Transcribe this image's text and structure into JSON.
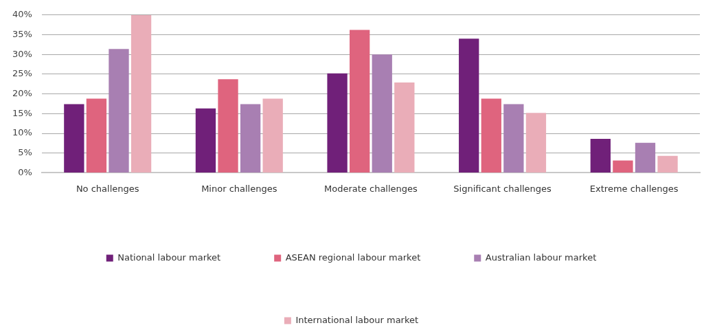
{
  "chart_data": {
    "type": "bar",
    "categories": [
      "No challenges",
      "Minor challenges",
      "Moderate challenges",
      "Significant challenges",
      "Extreme challenges"
    ],
    "series": [
      {
        "name": "National labour market",
        "color": "#702079",
        "values": [
          17.4,
          16.3,
          25.2,
          34.0,
          8.6
        ]
      },
      {
        "name": "ASEAN regional labour market",
        "color": "#df647e",
        "values": [
          18.8,
          23.7,
          36.2,
          18.8,
          3.1
        ]
      },
      {
        "name": "Australian labour market",
        "color": "#a87fb2",
        "values": [
          31.4,
          17.4,
          30.0,
          17.4,
          7.6
        ]
      },
      {
        "name": "International labour market",
        "color": "#eaadb8",
        "values": [
          40.0,
          18.8,
          22.9,
          15.2,
          4.3
        ]
      }
    ],
    "ylim": [
      0,
      40
    ],
    "yticks": [
      {
        "value": 0,
        "label": "0%"
      },
      {
        "value": 5,
        "label": "5%"
      },
      {
        "value": 10,
        "label": "10%"
      },
      {
        "value": 15,
        "label": "15%"
      },
      {
        "value": 20,
        "label": "20%"
      },
      {
        "value": 25,
        "label": "25%"
      },
      {
        "value": 30,
        "label": "30%"
      },
      {
        "value": 35,
        "label": "35%"
      },
      {
        "value": 40,
        "label": "40%"
      }
    ],
    "grid": "y",
    "legend": "bottom"
  }
}
